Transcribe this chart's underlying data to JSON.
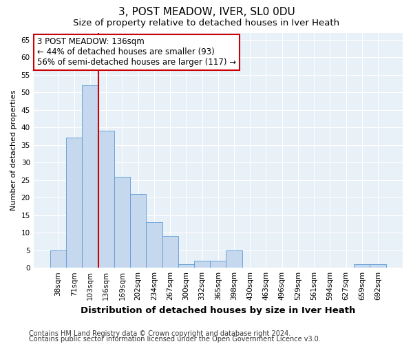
{
  "title": "3, POST MEADOW, IVER, SL0 0DU",
  "subtitle": "Size of property relative to detached houses in Iver Heath",
  "xlabel": "Distribution of detached houses by size in Iver Heath",
  "ylabel": "Number of detached properties",
  "categories": [
    "38sqm",
    "71sqm",
    "103sqm",
    "136sqm",
    "169sqm",
    "202sqm",
    "234sqm",
    "267sqm",
    "300sqm",
    "332sqm",
    "365sqm",
    "398sqm",
    "430sqm",
    "463sqm",
    "496sqm",
    "529sqm",
    "561sqm",
    "594sqm",
    "627sqm",
    "659sqm",
    "692sqm"
  ],
  "values": [
    5,
    37,
    52,
    39,
    26,
    21,
    13,
    9,
    1,
    2,
    2,
    5,
    0,
    0,
    0,
    0,
    0,
    0,
    0,
    1,
    1
  ],
  "bar_color": "#c5d8ed",
  "bar_edge_color": "#5b9bd5",
  "vline_color": "#cc0000",
  "vline_x_index": 2,
  "annotation_text": "3 POST MEADOW: 136sqm\n← 44% of detached houses are smaller (93)\n56% of semi-detached houses are larger (117) →",
  "annotation_box_color": "#ffffff",
  "annotation_box_edge": "#cc0000",
  "ylim": [
    0,
    67
  ],
  "yticks": [
    0,
    5,
    10,
    15,
    20,
    25,
    30,
    35,
    40,
    45,
    50,
    55,
    60,
    65
  ],
  "bg_color": "#e8f0f8",
  "grid_color": "#ffffff",
  "footer_line1": "Contains HM Land Registry data © Crown copyright and database right 2024.",
  "footer_line2": "Contains public sector information licensed under the Open Government Licence v3.0.",
  "title_fontsize": 11,
  "subtitle_fontsize": 9.5,
  "xlabel_fontsize": 9.5,
  "ylabel_fontsize": 8,
  "tick_fontsize": 7.5,
  "annotation_fontsize": 8.5,
  "footer_fontsize": 7
}
